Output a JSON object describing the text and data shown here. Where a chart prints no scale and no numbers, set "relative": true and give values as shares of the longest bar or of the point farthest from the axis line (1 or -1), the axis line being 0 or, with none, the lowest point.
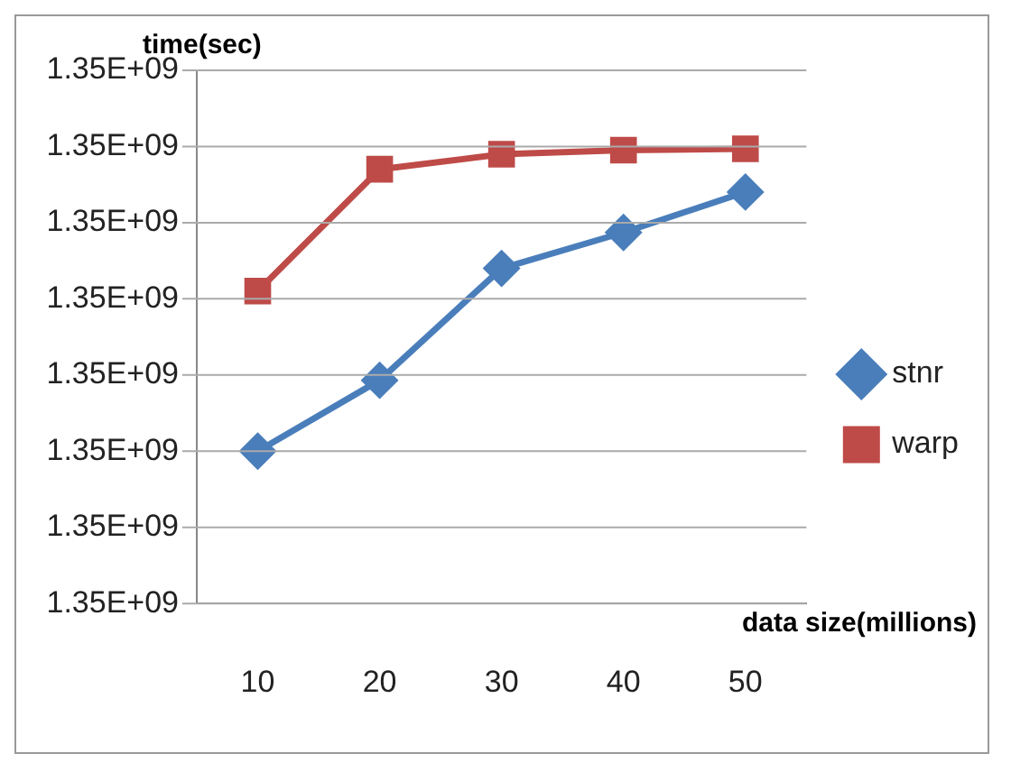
{
  "chart_data": {
    "type": "line",
    "xlabel": "data size(millions)",
    "ylabel": "time(sec)",
    "relative": true,
    "categories": [
      "10",
      "20",
      "30",
      "40",
      "50"
    ],
    "series": [
      {
        "name": "stnr",
        "color": "#4a7ebb",
        "marker": "diamond",
        "values": [
          0.335,
          0.491,
          0.737,
          0.816,
          0.905
        ]
      },
      {
        "name": "warp",
        "color": "#be4b48",
        "marker": "square",
        "values": [
          0.687,
          0.955,
          0.988,
          0.997,
          1
        ]
      }
    ],
    "annotations": [
      "1.35E+09",
      "1.35E+09",
      "1.35E+09",
      "1.35E+09",
      "1.35E+09",
      "1.35E+09",
      "1.35E+09",
      "1.35E+09"
    ],
    "grid": "y",
    "legend": "right",
    "line_style": "solid"
  }
}
